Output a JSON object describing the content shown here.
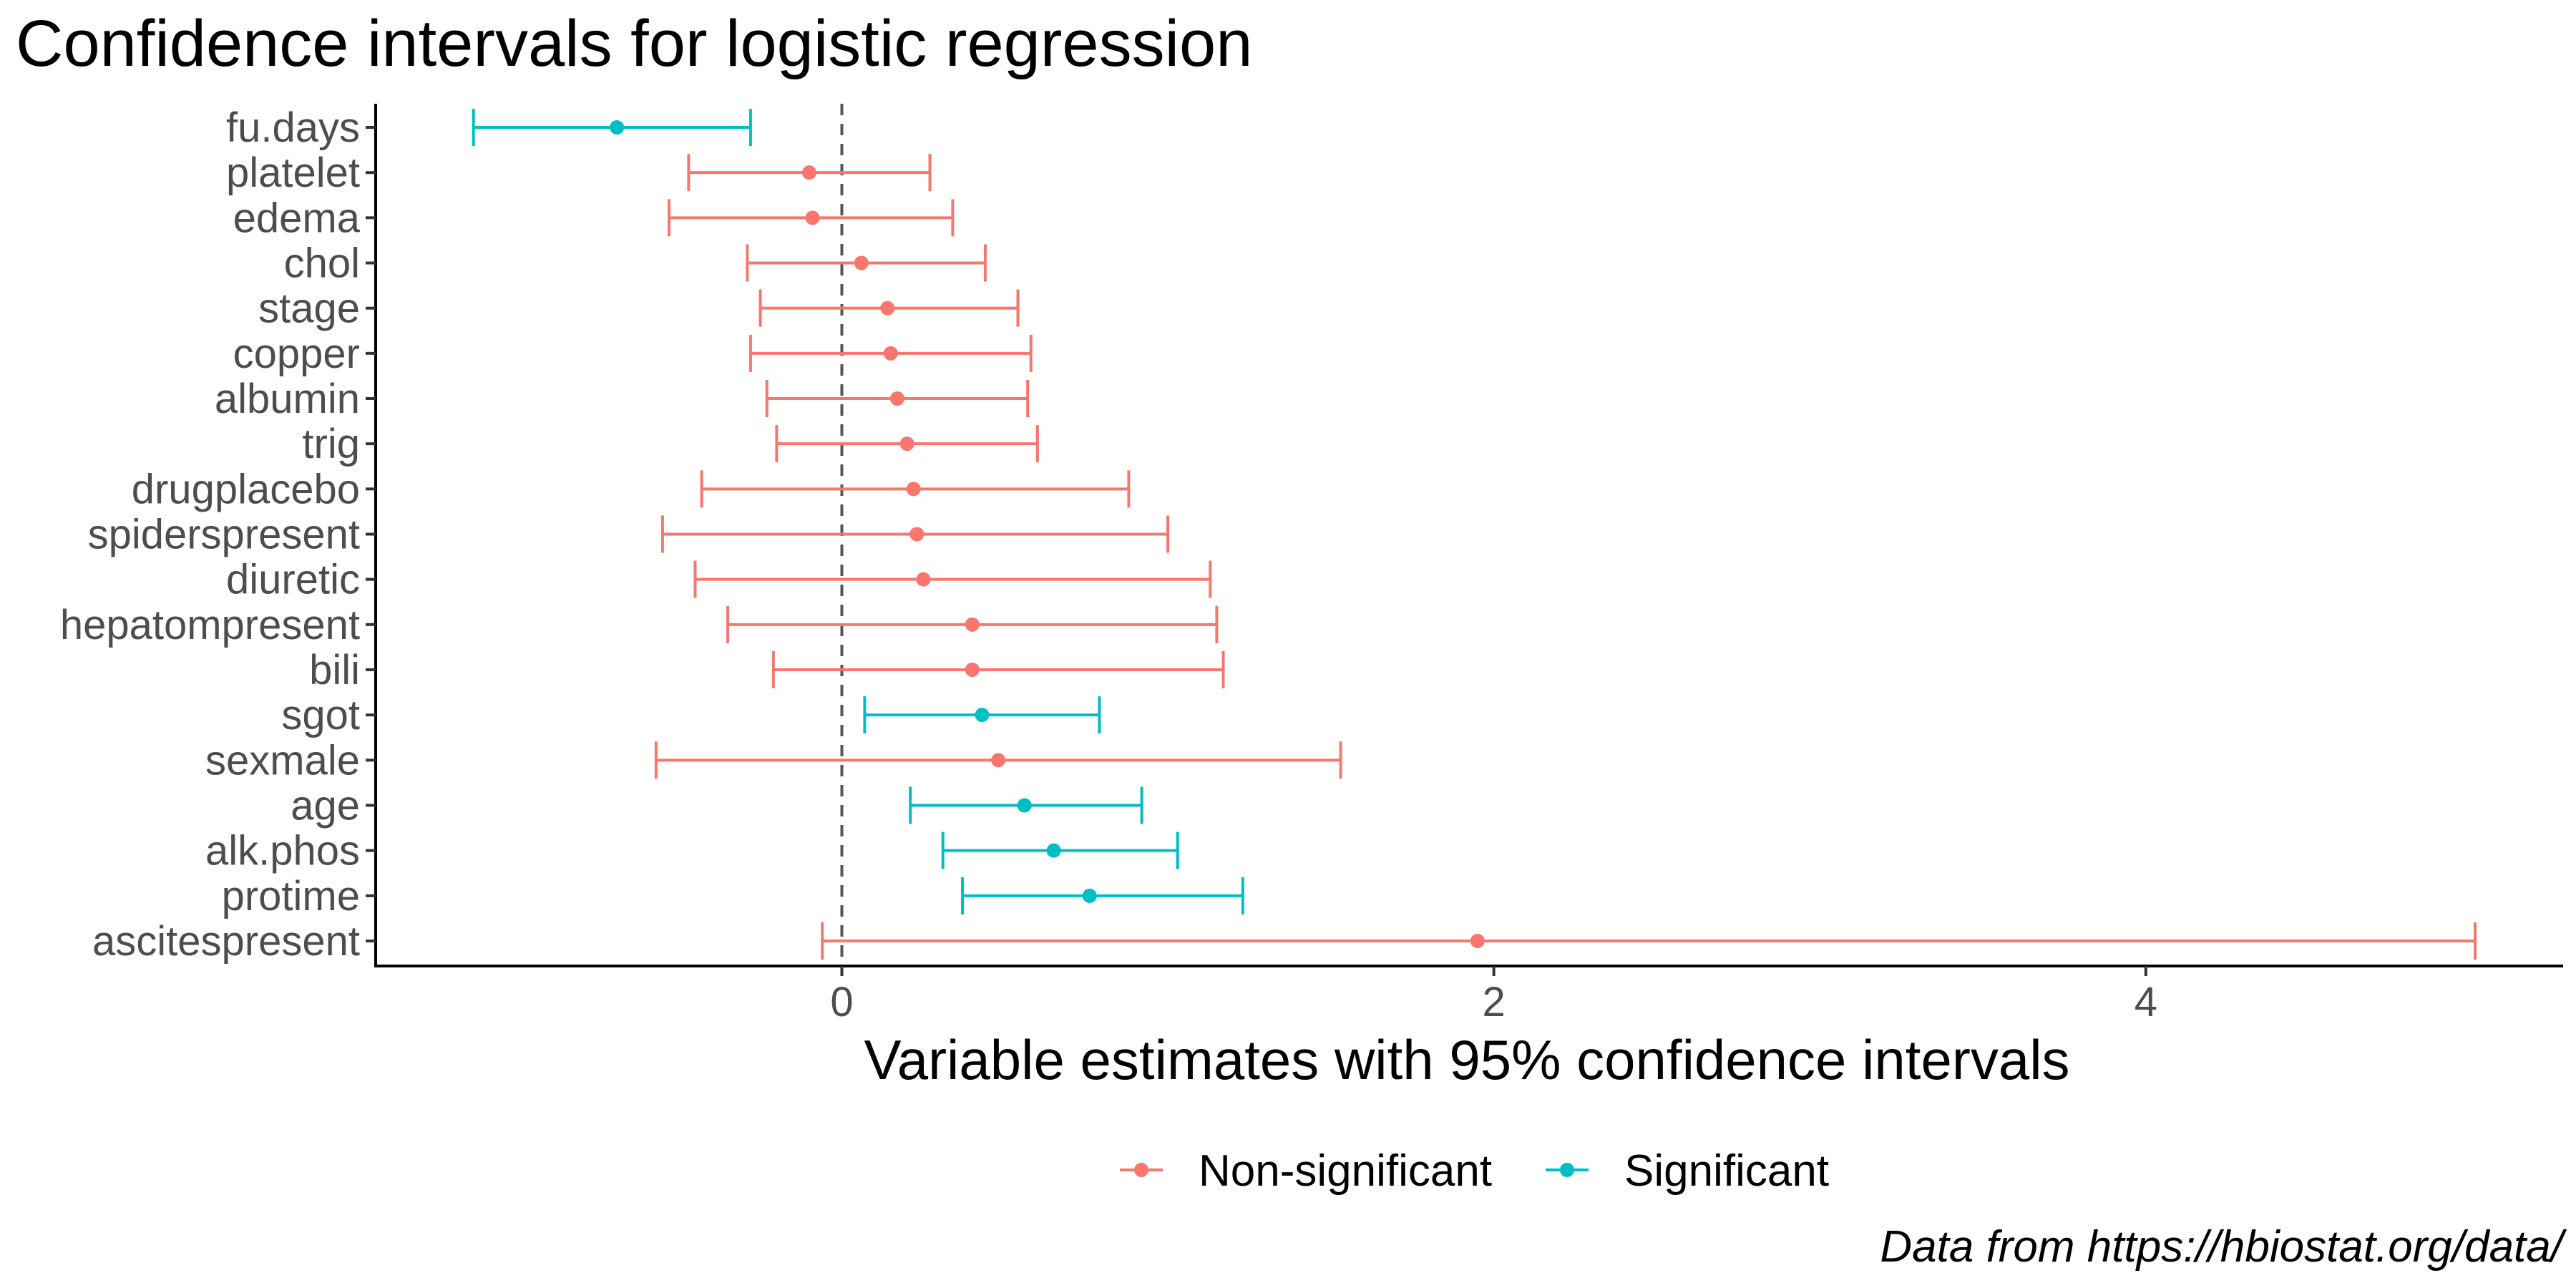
{
  "chart_data": {
    "type": "errorbar",
    "title": "Confidence intervals for logistic regression",
    "xlabel": "Variable estimates with 95% confidence intervals",
    "ylabel": "",
    "caption": "Data from https://hbiostat.org/data/",
    "xlim": [
      -1.43,
      5.28
    ],
    "x_ticks": [
      0,
      2,
      4
    ],
    "reference_line": 0,
    "grid": false,
    "legend_position": "bottom",
    "series": [
      {
        "name": "Non-significant",
        "color": "#f8766d"
      },
      {
        "name": "Significant",
        "color": "#00bfc4"
      }
    ],
    "points": [
      {
        "label": "fu.days",
        "estimate": -0.69,
        "lower": -1.13,
        "upper": -0.28,
        "group": "Significant"
      },
      {
        "label": "platelet",
        "estimate": -0.1,
        "lower": -0.47,
        "upper": 0.27,
        "group": "Non-significant"
      },
      {
        "label": "edema",
        "estimate": -0.09,
        "lower": -0.53,
        "upper": 0.34,
        "group": "Non-significant"
      },
      {
        "label": "chol",
        "estimate": 0.06,
        "lower": -0.29,
        "upper": 0.44,
        "group": "Non-significant"
      },
      {
        "label": "stage",
        "estimate": 0.14,
        "lower": -0.25,
        "upper": 0.54,
        "group": "Non-significant"
      },
      {
        "label": "copper",
        "estimate": 0.15,
        "lower": -0.28,
        "upper": 0.58,
        "group": "Non-significant"
      },
      {
        "label": "albumin",
        "estimate": 0.17,
        "lower": -0.23,
        "upper": 0.57,
        "group": "Non-significant"
      },
      {
        "label": "trig",
        "estimate": 0.2,
        "lower": -0.2,
        "upper": 0.6,
        "group": "Non-significant"
      },
      {
        "label": "drugplacebo",
        "estimate": 0.22,
        "lower": -0.43,
        "upper": 0.88,
        "group": "Non-significant"
      },
      {
        "label": "spiderspresent",
        "estimate": 0.23,
        "lower": -0.55,
        "upper": 1.0,
        "group": "Non-significant"
      },
      {
        "label": "diuretic",
        "estimate": 0.25,
        "lower": -0.45,
        "upper": 1.13,
        "group": "Non-significant"
      },
      {
        "label": "hepatompresent",
        "estimate": 0.4,
        "lower": -0.35,
        "upper": 1.15,
        "group": "Non-significant"
      },
      {
        "label": "bili",
        "estimate": 0.4,
        "lower": -0.21,
        "upper": 1.17,
        "group": "Non-significant"
      },
      {
        "label": "sgot",
        "estimate": 0.43,
        "lower": 0.07,
        "upper": 0.79,
        "group": "Significant"
      },
      {
        "label": "sexmale",
        "estimate": 0.48,
        "lower": -0.57,
        "upper": 1.53,
        "group": "Non-significant"
      },
      {
        "label": "age",
        "estimate": 0.56,
        "lower": 0.21,
        "upper": 0.92,
        "group": "Significant"
      },
      {
        "label": "alk.phos",
        "estimate": 0.65,
        "lower": 0.31,
        "upper": 1.03,
        "group": "Significant"
      },
      {
        "label": "protime",
        "estimate": 0.76,
        "lower": 0.37,
        "upper": 1.23,
        "group": "Significant"
      },
      {
        "label": "ascitespresent",
        "estimate": 1.95,
        "lower": -0.06,
        "upper": 5.01,
        "group": "Non-significant"
      }
    ]
  }
}
